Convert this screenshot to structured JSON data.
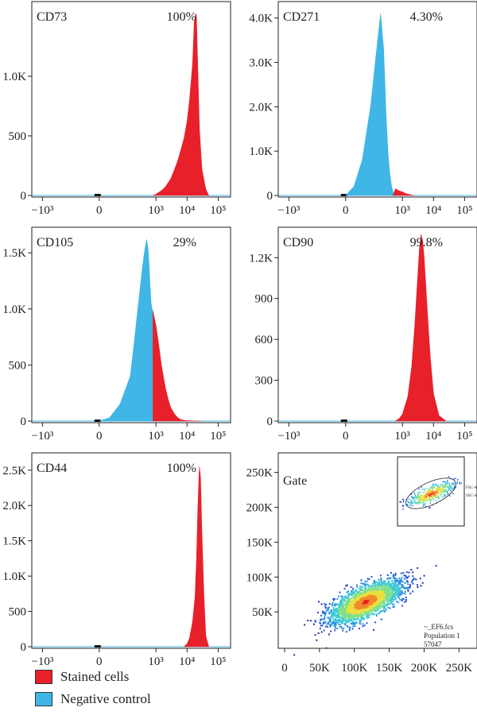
{
  "colors": {
    "stained": "#e8202a",
    "negative": "#3fb6e6",
    "axis": "#222222"
  },
  "legend": [
    {
      "label": "Stained cells",
      "color": "#e8202a"
    },
    {
      "label": "Negative control",
      "color": "#3fb6e6"
    }
  ],
  "chart_data": [
    {
      "type": "area",
      "label": "CD73",
      "percent": "100%",
      "scale": "biexponential",
      "xticks": [
        "−10³",
        "0",
        "10³",
        "10⁴",
        "10⁵"
      ],
      "yticks": [
        "0",
        "500",
        "1.0K"
      ],
      "ylim": [
        0,
        1600
      ],
      "series": [
        {
          "name": "Stained cells",
          "color": "#e8202a",
          "x": [
            800,
            1000,
            1500,
            2000,
            3000,
            4000,
            5000,
            6000,
            8000,
            10000,
            12000,
            15000,
            17000,
            19000,
            20000,
            22000,
            25000,
            30000,
            40000,
            50000
          ],
          "y": [
            0,
            10,
            40,
            70,
            140,
            220,
            290,
            360,
            480,
            620,
            800,
            1100,
            1450,
            1530,
            1500,
            1100,
            550,
            220,
            50,
            0
          ]
        }
      ]
    },
    {
      "type": "area",
      "label": "CD271",
      "percent": "4.30%",
      "scale": "biexponential",
      "xticks": [
        "−10³",
        "0",
        "10³",
        "10⁴",
        "10⁵"
      ],
      "yticks": [
        "0",
        "1.0K",
        "2.0K",
        "3.0K",
        "4.0K"
      ],
      "ylim": [
        0,
        4300
      ],
      "series": [
        {
          "name": "Negative control",
          "color": "#3fb6e6",
          "x": [
            0,
            40,
            80,
            120,
            160,
            200,
            250,
            300,
            350,
            400,
            450,
            500,
            600,
            700
          ],
          "y": [
            0,
            200,
            800,
            2000,
            3500,
            4100,
            3300,
            1800,
            900,
            450,
            200,
            80,
            20,
            0
          ]
        },
        {
          "name": "Stained cells",
          "color": "#e8202a",
          "x": [
            500,
            600,
            700,
            800,
            1000,
            1200,
            1500,
            2000,
            2500
          ],
          "y": [
            0,
            150,
            120,
            100,
            80,
            50,
            30,
            10,
            0
          ]
        }
      ]
    },
    {
      "type": "area",
      "label": "CD105",
      "percent": "29%",
      "scale": "biexponential",
      "xticks": [
        "−10³",
        "0",
        "10³",
        "10⁴",
        "10⁵"
      ],
      "yticks": [
        "0",
        "500",
        "1.0K",
        "1.5K"
      ],
      "ylim": [
        0,
        1700
      ],
      "series": [
        {
          "name": "Negative control",
          "color": "#3fb6e6",
          "x": [
            0,
            50,
            100,
            150,
            200,
            250,
            300,
            350,
            400,
            450,
            500,
            550,
            600,
            650,
            700,
            750,
            800
          ],
          "y": [
            0,
            30,
            150,
            400,
            700,
            950,
            1150,
            1320,
            1450,
            1550,
            1620,
            1550,
            1400,
            1200,
            1050,
            1000,
            980
          ]
        },
        {
          "name": "Stained cells",
          "color": "#e8202a",
          "x": [
            800,
            1000,
            1200,
            1500,
            2000,
            2500,
            3000,
            4000,
            5000,
            6000,
            8000,
            10000,
            20000,
            30000
          ],
          "y": [
            980,
            850,
            700,
            500,
            300,
            190,
            120,
            60,
            30,
            15,
            8,
            4,
            1,
            0
          ]
        }
      ]
    },
    {
      "type": "area",
      "label": "CD90",
      "percent": "99.8%",
      "scale": "biexponential",
      "xticks": [
        "−10³",
        "0",
        "10³",
        "10⁴",
        "10⁵"
      ],
      "yticks": [
        "0",
        "300",
        "600",
        "900",
        "1.2K"
      ],
      "ylim": [
        0,
        1400
      ],
      "series": [
        {
          "name": "Stained cells",
          "color": "#e8202a",
          "x": [
            600,
            800,
            1000,
            1500,
            2000,
            2500,
            3000,
            3500,
            4000,
            4500,
            5000,
            6000,
            7000,
            8000,
            10000,
            15000,
            25000
          ],
          "y": [
            0,
            20,
            50,
            180,
            400,
            700,
            1000,
            1250,
            1370,
            1320,
            1200,
            900,
            650,
            450,
            200,
            40,
            0
          ]
        }
      ]
    },
    {
      "type": "area",
      "label": "CD44",
      "percent": "100%",
      "scale": "biexponential",
      "xticks": [
        "−10³",
        "0",
        "10³",
        "10⁴",
        "10⁵"
      ],
      "yticks": [
        "0",
        "500",
        "1.0K",
        "1.5K",
        "2.0K",
        "2.5K"
      ],
      "ylim": [
        0,
        2700
      ],
      "series": [
        {
          "name": "Stained cells",
          "color": "#e8202a",
          "x": [
            8000,
            10000,
            12000,
            15000,
            18000,
            20000,
            22000,
            24000,
            25000,
            27000,
            30000,
            35000,
            40000,
            50000
          ],
          "y": [
            0,
            40,
            120,
            350,
            700,
            1200,
            1900,
            2400,
            2550,
            2400,
            1600,
            700,
            150,
            0
          ]
        }
      ]
    },
    {
      "type": "scatter",
      "label": "Gate",
      "xticks": [
        "0",
        "50K",
        "100K",
        "150K",
        "200K",
        "250K"
      ],
      "yticks": [
        "50K",
        "100K",
        "150K",
        "200K",
        "250K"
      ],
      "xlim": [
        0,
        262144
      ],
      "ylim": [
        0,
        262144
      ],
      "annotation": [
        "~_EF6.fcs",
        "Population 1",
        "57047"
      ],
      "series": [
        {
          "name": "Population 1",
          "center": [
            115000,
            65000
          ],
          "direction": [
            80000,
            38000
          ],
          "spread": 14000
        }
      ],
      "inset_ticks": [
        "FSC-A",
        "SSC-A"
      ]
    }
  ]
}
